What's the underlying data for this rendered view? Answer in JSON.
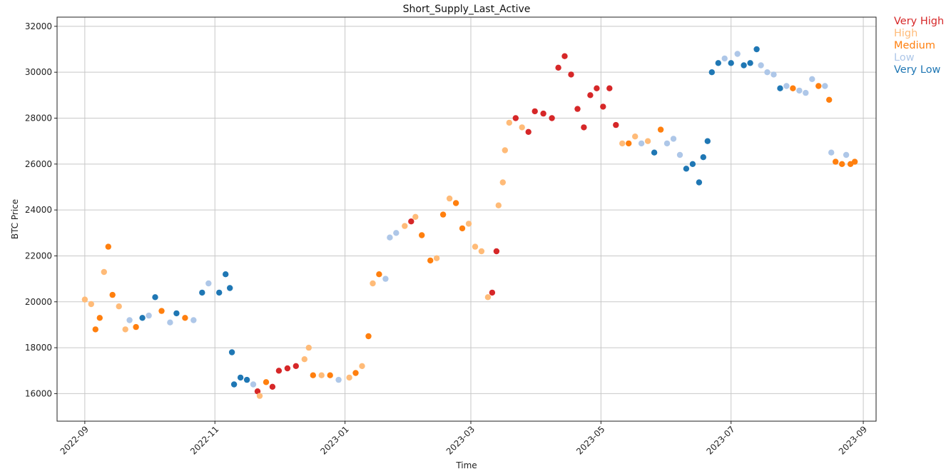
{
  "chart_data": {
    "type": "scatter",
    "title": "Short_Supply_Last_Active",
    "xlabel": "Time",
    "ylabel": "BTC Price",
    "xlim": [
      "2022-08-19",
      "2023-09-07"
    ],
    "ylim": [
      14800,
      32400
    ],
    "x_ticks": [
      "2022-09",
      "2022-11",
      "2023-01",
      "2023-03",
      "2023-05",
      "2023-07",
      "2023-09"
    ],
    "y_ticks": [
      16000,
      18000,
      20000,
      22000,
      24000,
      26000,
      28000,
      30000,
      32000
    ],
    "grid": true,
    "legend_position": "outside-top-right",
    "categories": [
      {
        "name": "Very High",
        "color": "#d62728"
      },
      {
        "name": "High",
        "color": "#ffbb78"
      },
      {
        "name": "Medium",
        "color": "#ff7f0e"
      },
      {
        "name": "Low",
        "color": "#aec7e8"
      },
      {
        "name": "Very Low",
        "color": "#1f77b4"
      }
    ],
    "series_points": [
      [
        "2022-09-01",
        20100,
        "High"
      ],
      [
        "2022-09-04",
        19900,
        "High"
      ],
      [
        "2022-09-06",
        18800,
        "Medium"
      ],
      [
        "2022-09-08",
        19300,
        "Medium"
      ],
      [
        "2022-09-10",
        21300,
        "High"
      ],
      [
        "2022-09-12",
        22400,
        "Medium"
      ],
      [
        "2022-09-14",
        20300,
        "Medium"
      ],
      [
        "2022-09-17",
        19800,
        "High"
      ],
      [
        "2022-09-20",
        18800,
        "High"
      ],
      [
        "2022-09-22",
        19200,
        "Low"
      ],
      [
        "2022-09-25",
        18900,
        "Medium"
      ],
      [
        "2022-09-28",
        19300,
        "Very Low"
      ],
      [
        "2022-10-01",
        19400,
        "Low"
      ],
      [
        "2022-10-04",
        20200,
        "Very Low"
      ],
      [
        "2022-10-07",
        19600,
        "Medium"
      ],
      [
        "2022-10-11",
        19100,
        "Low"
      ],
      [
        "2022-10-14",
        19500,
        "Very Low"
      ],
      [
        "2022-10-18",
        19300,
        "Medium"
      ],
      [
        "2022-10-22",
        19200,
        "Low"
      ],
      [
        "2022-10-26",
        20400,
        "Very Low"
      ],
      [
        "2022-10-29",
        20800,
        "Low"
      ],
      [
        "2022-11-03",
        20400,
        "Very Low"
      ],
      [
        "2022-11-06",
        21200,
        "Very Low"
      ],
      [
        "2022-11-08",
        20600,
        "Very Low"
      ],
      [
        "2022-11-09",
        17800,
        "Very Low"
      ],
      [
        "2022-11-10",
        16400,
        "Very Low"
      ],
      [
        "2022-11-13",
        16700,
        "Very Low"
      ],
      [
        "2022-11-16",
        16600,
        "Very Low"
      ],
      [
        "2022-11-19",
        16400,
        "Low"
      ],
      [
        "2022-11-21",
        16100,
        "Very High"
      ],
      [
        "2022-11-22",
        15900,
        "High"
      ],
      [
        "2022-11-25",
        16500,
        "Medium"
      ],
      [
        "2022-11-28",
        16300,
        "Very High"
      ],
      [
        "2022-12-01",
        17000,
        "Very High"
      ],
      [
        "2022-12-05",
        17100,
        "Very High"
      ],
      [
        "2022-12-09",
        17200,
        "Very High"
      ],
      [
        "2022-12-13",
        17500,
        "High"
      ],
      [
        "2022-12-15",
        18000,
        "High"
      ],
      [
        "2022-12-17",
        16800,
        "Medium"
      ],
      [
        "2022-12-21",
        16800,
        "High"
      ],
      [
        "2022-12-25",
        16800,
        "Medium"
      ],
      [
        "2022-12-29",
        16600,
        "Low"
      ],
      [
        "2023-01-03",
        16700,
        "High"
      ],
      [
        "2023-01-06",
        16900,
        "Medium"
      ],
      [
        "2023-01-09",
        17200,
        "High"
      ],
      [
        "2023-01-12",
        18500,
        "Medium"
      ],
      [
        "2023-01-14",
        20800,
        "High"
      ],
      [
        "2023-01-17",
        21200,
        "Medium"
      ],
      [
        "2023-01-20",
        21000,
        "Low"
      ],
      [
        "2023-01-22",
        22800,
        "Low"
      ],
      [
        "2023-01-25",
        23000,
        "Low"
      ],
      [
        "2023-01-29",
        23300,
        "High"
      ],
      [
        "2023-02-01",
        23500,
        "Very High"
      ],
      [
        "2023-02-03",
        23700,
        "High"
      ],
      [
        "2023-02-06",
        22900,
        "Medium"
      ],
      [
        "2023-02-10",
        21800,
        "Medium"
      ],
      [
        "2023-02-13",
        21900,
        "High"
      ],
      [
        "2023-02-16",
        23800,
        "Medium"
      ],
      [
        "2023-02-19",
        24500,
        "High"
      ],
      [
        "2023-02-22",
        24300,
        "Medium"
      ],
      [
        "2023-02-25",
        23200,
        "Medium"
      ],
      [
        "2023-02-28",
        23400,
        "High"
      ],
      [
        "2023-03-03",
        22400,
        "High"
      ],
      [
        "2023-03-06",
        22200,
        "High"
      ],
      [
        "2023-03-09",
        20200,
        "High"
      ],
      [
        "2023-03-11",
        20400,
        "Very High"
      ],
      [
        "2023-03-13",
        22200,
        "Very High"
      ],
      [
        "2023-03-14",
        24200,
        "High"
      ],
      [
        "2023-03-16",
        25200,
        "High"
      ],
      [
        "2023-03-17",
        26600,
        "High"
      ],
      [
        "2023-03-19",
        27800,
        "High"
      ],
      [
        "2023-03-22",
        28000,
        "Very High"
      ],
      [
        "2023-03-25",
        27600,
        "High"
      ],
      [
        "2023-03-28",
        27400,
        "Very High"
      ],
      [
        "2023-03-31",
        28300,
        "Very High"
      ],
      [
        "2023-04-04",
        28200,
        "Very High"
      ],
      [
        "2023-04-08",
        28000,
        "Very High"
      ],
      [
        "2023-04-11",
        30200,
        "Very High"
      ],
      [
        "2023-04-14",
        30700,
        "Very High"
      ],
      [
        "2023-04-17",
        29900,
        "Very High"
      ],
      [
        "2023-04-20",
        28400,
        "Very High"
      ],
      [
        "2023-04-23",
        27600,
        "Very High"
      ],
      [
        "2023-04-26",
        29000,
        "Very High"
      ],
      [
        "2023-04-29",
        29300,
        "Very High"
      ],
      [
        "2023-05-02",
        28500,
        "Very High"
      ],
      [
        "2023-05-05",
        29300,
        "Very High"
      ],
      [
        "2023-05-08",
        27700,
        "Very High"
      ],
      [
        "2023-05-11",
        26900,
        "High"
      ],
      [
        "2023-05-14",
        26900,
        "Medium"
      ],
      [
        "2023-05-17",
        27200,
        "High"
      ],
      [
        "2023-05-20",
        26900,
        "Low"
      ],
      [
        "2023-05-23",
        27000,
        "High"
      ],
      [
        "2023-05-26",
        26500,
        "Very Low"
      ],
      [
        "2023-05-29",
        27500,
        "Medium"
      ],
      [
        "2023-06-01",
        26900,
        "Low"
      ],
      [
        "2023-06-04",
        27100,
        "Low"
      ],
      [
        "2023-06-07",
        26400,
        "Low"
      ],
      [
        "2023-06-10",
        25800,
        "Very Low"
      ],
      [
        "2023-06-13",
        26000,
        "Very Low"
      ],
      [
        "2023-06-16",
        25200,
        "Very Low"
      ],
      [
        "2023-06-18",
        26300,
        "Very Low"
      ],
      [
        "2023-06-20",
        27000,
        "Very Low"
      ],
      [
        "2023-06-22",
        30000,
        "Very Low"
      ],
      [
        "2023-06-25",
        30400,
        "Very Low"
      ],
      [
        "2023-06-28",
        30600,
        "Low"
      ],
      [
        "2023-07-01",
        30400,
        "Very Low"
      ],
      [
        "2023-07-04",
        30800,
        "Low"
      ],
      [
        "2023-07-07",
        30300,
        "Very Low"
      ],
      [
        "2023-07-10",
        30400,
        "Very Low"
      ],
      [
        "2023-07-13",
        31000,
        "Very Low"
      ],
      [
        "2023-07-15",
        30300,
        "Low"
      ],
      [
        "2023-07-18",
        30000,
        "Low"
      ],
      [
        "2023-07-21",
        29900,
        "Low"
      ],
      [
        "2023-07-24",
        29300,
        "Very Low"
      ],
      [
        "2023-07-27",
        29400,
        "Low"
      ],
      [
        "2023-07-30",
        29300,
        "Medium"
      ],
      [
        "2023-08-02",
        29200,
        "Low"
      ],
      [
        "2023-08-05",
        29100,
        "Low"
      ],
      [
        "2023-08-08",
        29700,
        "Low"
      ],
      [
        "2023-08-11",
        29400,
        "Medium"
      ],
      [
        "2023-08-14",
        29400,
        "Low"
      ],
      [
        "2023-08-16",
        28800,
        "Medium"
      ],
      [
        "2023-08-17",
        26500,
        "Low"
      ],
      [
        "2023-08-19",
        26100,
        "Medium"
      ],
      [
        "2023-08-22",
        26000,
        "Medium"
      ],
      [
        "2023-08-24",
        26400,
        "Low"
      ],
      [
        "2023-08-26",
        26000,
        "Medium"
      ],
      [
        "2023-08-28",
        26100,
        "Medium"
      ]
    ]
  }
}
